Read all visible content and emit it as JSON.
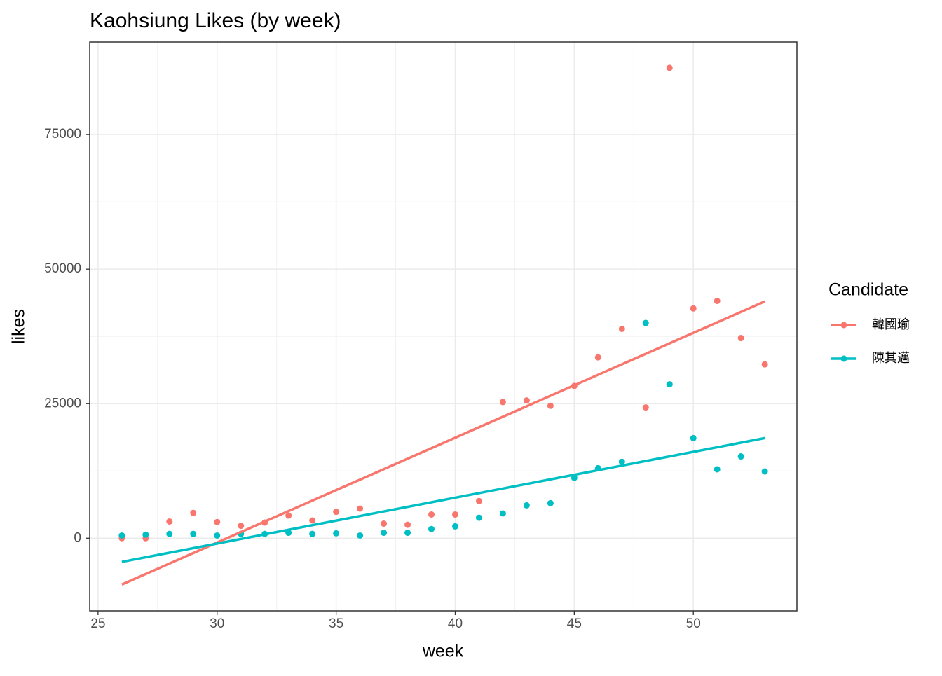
{
  "chart_data": {
    "type": "scatter",
    "title": "Kaohsiung Likes (by week)",
    "x_label": "week",
    "y_label": "likes",
    "legend_title": "Candidate",
    "x": [
      26,
      27,
      28,
      29,
      30,
      31,
      32,
      33,
      34,
      35,
      36,
      37,
      38,
      39,
      40,
      41,
      42,
      43,
      44,
      45,
      46,
      47,
      48,
      49,
      50,
      51,
      52,
      53
    ],
    "series": [
      {
        "name": "韓國瑜",
        "color": "#f8766d",
        "values": [
          0,
          0,
          3100,
          4700,
          3000,
          2300,
          2900,
          4200,
          3300,
          4900,
          5500,
          2700,
          2500,
          4400,
          4400,
          6900,
          25300,
          25600,
          24600,
          28300,
          33600,
          38900,
          24300,
          87400,
          42700,
          44100,
          37200,
          32300
        ],
        "fit": {
          "x": [
            26,
            53
          ],
          "values": [
            -8600,
            44000
          ]
        }
      },
      {
        "name": "陳其邁",
        "color": "#00bfc4",
        "values": [
          500,
          650,
          800,
          800,
          500,
          800,
          800,
          1000,
          800,
          900,
          500,
          1000,
          1000,
          1700,
          2200,
          3800,
          4600,
          6100,
          6500,
          11200,
          13000,
          14200,
          40000,
          28600,
          18600,
          12800,
          15200,
          12400
        ],
        "fit": {
          "x": [
            26,
            53
          ],
          "values": [
            -4400,
            18600
          ]
        }
      }
    ],
    "xlim": [
      24.65,
      54.35
    ],
    "ylim": [
      -13500,
      92200
    ],
    "xticks": [
      25,
      30,
      35,
      40,
      45,
      50
    ],
    "yticks": [
      0,
      25000,
      50000,
      75000
    ],
    "grid": true,
    "legend": "right"
  }
}
